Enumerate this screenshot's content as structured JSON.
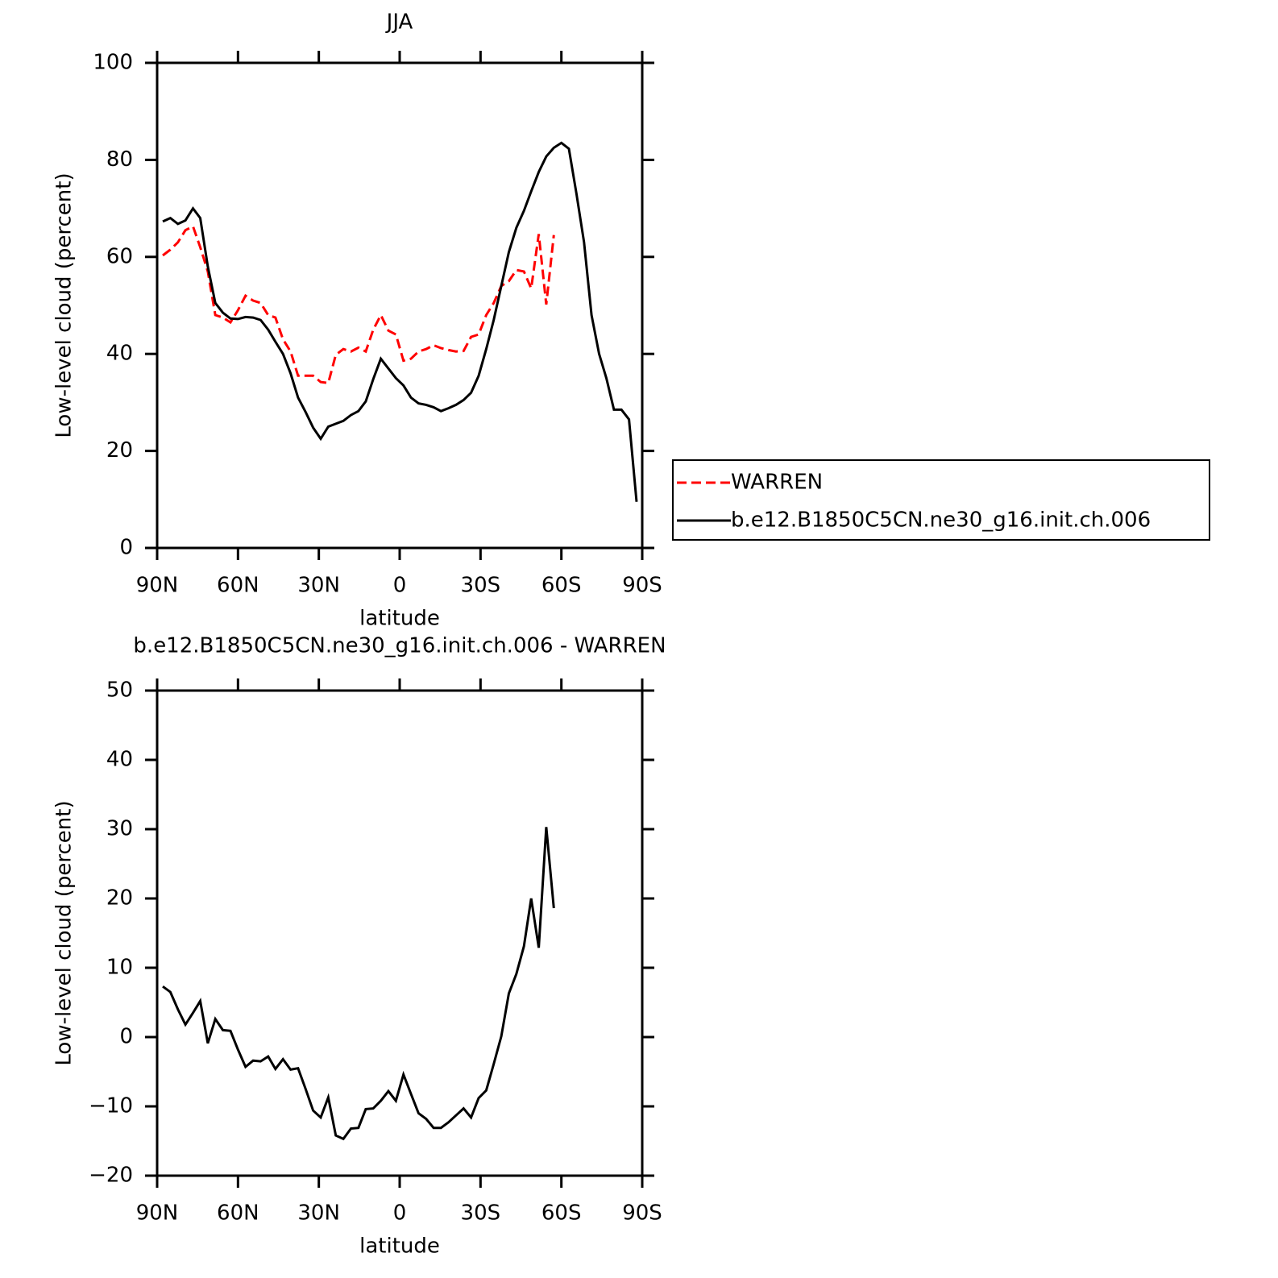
{
  "chart_data": [
    {
      "type": "line",
      "title": "JJA",
      "x_label": "latitude",
      "y_label": "Low-level cloud (percent)",
      "x": [
        87.9,
        85.1,
        82.3,
        79.5,
        76.7,
        74.0,
        71.2,
        68.4,
        65.6,
        62.8,
        60.0,
        57.2,
        54.4,
        51.6,
        48.8,
        46.1,
        43.3,
        40.5,
        37.7,
        34.9,
        32.1,
        29.3,
        26.5,
        23.7,
        20.9,
        18.1,
        15.3,
        12.6,
        9.8,
        7.0,
        4.2,
        1.4,
        -1.4,
        -4.2,
        -7.0,
        -9.8,
        -12.6,
        -15.3,
        -18.1,
        -20.9,
        -23.7,
        -26.5,
        -29.3,
        -32.1,
        -34.9,
        -37.7,
        -40.5,
        -43.3,
        -46.1,
        -48.8,
        -51.6,
        -54.4,
        -57.2,
        -60.0,
        -62.8,
        -65.6,
        -68.4,
        -71.2,
        -74.0,
        -76.7,
        -79.5,
        -82.3,
        -85.1,
        -87.9
      ],
      "xlim": [
        90,
        -90
      ],
      "xticks": [
        {
          "value": 90,
          "label": "90N"
        },
        {
          "value": 60,
          "label": "60N"
        },
        {
          "value": 30,
          "label": "30N"
        },
        0,
        {
          "value": -30,
          "label": "30S"
        },
        {
          "value": -60,
          "label": "60S"
        },
        {
          "value": -90,
          "label": "90S"
        }
      ],
      "ylim": [
        0,
        100
      ],
      "yticks": [
        0,
        20,
        40,
        60,
        80,
        100
      ],
      "legend": "right",
      "series": [
        {
          "name": "WARREN",
          "color": "#ff0000",
          "dash": true,
          "values": [
            60.3,
            61.5,
            63,
            65.5,
            66.3,
            62,
            57,
            48,
            47.5,
            46.5,
            49,
            52,
            51,
            50.5,
            48,
            47.5,
            43,
            40.5,
            35.5,
            35.5,
            35.5,
            34.2,
            34,
            39.8,
            41,
            40.5,
            41.3,
            40.5,
            45,
            48,
            44.8,
            44,
            38.6,
            39,
            40.5,
            41,
            41.8,
            41.2,
            40.8,
            40.5,
            40.6,
            43.5,
            44,
            48,
            50.5,
            54,
            55,
            57.3,
            57,
            53.5,
            64.7,
            50.2,
            64.5,
            null,
            null,
            null,
            null,
            null,
            null,
            null,
            null,
            null,
            null,
            null
          ]
        },
        {
          "name": "b.e12.B1850C5CN.ne30_g16.init.ch.006",
          "color": "#000000",
          "dash": false,
          "values": [
            67.3,
            68,
            66.8,
            67.5,
            70,
            68,
            58,
            50.5,
            48.5,
            47.3,
            47.2,
            47.6,
            47.5,
            47,
            45,
            42.5,
            40,
            36,
            31,
            28,
            24.8,
            22.5,
            25,
            25.6,
            26.2,
            27.4,
            28.2,
            30.2,
            34.8,
            39,
            37,
            35,
            33.5,
            31,
            29.8,
            29.5,
            29,
            28.2,
            28.8,
            29.5,
            30.5,
            32,
            35.5,
            41,
            47,
            54,
            61,
            66,
            69.5,
            73.5,
            77.5,
            80.7,
            82.5,
            83.5,
            82.3,
            73,
            63,
            48,
            40,
            35,
            28.5,
            28.5,
            26.5,
            9.5
          ]
        }
      ]
    },
    {
      "type": "line",
      "title": "b.e12.B1850C5CN.ne30_g16.init.ch.006 - WARREN",
      "x_label": "latitude",
      "y_label": "Low-level cloud (percent)",
      "x": [
        87.9,
        85.1,
        82.3,
        79.5,
        76.7,
        74.0,
        71.2,
        68.4,
        65.6,
        62.8,
        60.0,
        57.2,
        54.4,
        51.6,
        48.8,
        46.1,
        43.3,
        40.5,
        37.7,
        34.9,
        32.1,
        29.3,
        26.5,
        23.7,
        20.9,
        18.1,
        15.3,
        12.6,
        9.8,
        7.0,
        4.2,
        1.4,
        -1.4,
        -4.2,
        -7.0,
        -9.8,
        -12.6,
        -15.3,
        -18.1,
        -20.9,
        -23.7,
        -26.5,
        -29.3,
        -32.1,
        -34.9,
        -37.7,
        -40.5,
        -43.3,
        -46.1,
        -48.8,
        -51.6,
        -54.4,
        -57.2,
        -60.0,
        -62.8,
        -65.6,
        -68.4,
        -71.2,
        -74.0,
        -76.7,
        -79.5,
        -82.3,
        -85.1,
        -87.9
      ],
      "xlim": [
        90,
        -90
      ],
      "xticks": [
        {
          "value": 90,
          "label": "90N"
        },
        {
          "value": 60,
          "label": "60N"
        },
        {
          "value": 30,
          "label": "30N"
        },
        0,
        {
          "value": -30,
          "label": "30S"
        },
        {
          "value": -60,
          "label": "60S"
        },
        {
          "value": -90,
          "label": "90S"
        }
      ],
      "ylim": [
        -20,
        50
      ],
      "yticks": [
        {
          "value": -20,
          "label": "−20"
        },
        {
          "value": -10,
          "label": "−10"
        },
        0,
        10,
        20,
        30,
        40,
        50
      ],
      "series": [
        {
          "color": "#000000",
          "dash": false,
          "values": [
            7.3,
            6.5,
            4,
            1.8,
            3.5,
            5.2,
            -0.9,
            2.6,
            1,
            0.9,
            -1.8,
            -4.3,
            -3.4,
            -3.5,
            -2.8,
            -4.6,
            -3.2,
            -4.7,
            -4.5,
            -7.5,
            -10.6,
            -11.6,
            -8.7,
            -14.2,
            -14.7,
            -13.2,
            -13.1,
            -10.4,
            -10.3,
            -9.2,
            -7.8,
            -9.2,
            -5.4,
            -8.2,
            -11,
            -11.8,
            -13.1,
            -13.1,
            -12.3,
            -11.3,
            -10.3,
            -11.6,
            -8.8,
            -7.7,
            -3.9,
            0.1,
            6.3,
            9.1,
            13.1,
            20,
            12.9,
            30.3,
            18.6,
            null,
            null,
            null,
            null,
            null,
            null,
            null,
            null,
            null,
            null,
            null
          ]
        }
      ]
    }
  ]
}
